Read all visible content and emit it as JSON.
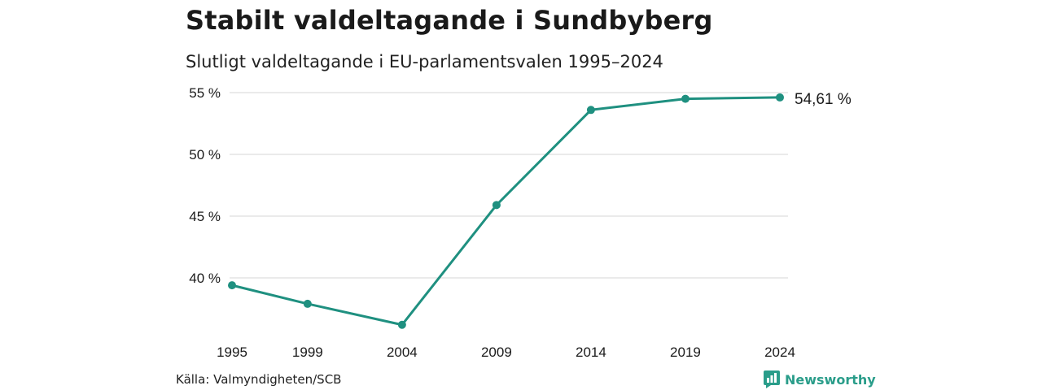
{
  "title": "Stabilt valdeltagande i Sundbyberg",
  "subtitle": "Slutligt valdeltagande i EU-parlamentsvalen 1995–2024",
  "source": "Källa: Valmyndigheten/SCB",
  "logo_text": "Newsworthy",
  "colors": {
    "line": "#1f9080",
    "grid": "#dddddd",
    "logo": "#2a9d8a"
  },
  "chart_data": {
    "type": "line",
    "title": "Stabilt valdeltagande i Sundbyberg",
    "subtitle": "Slutligt valdeltagande i EU-parlamentsvalen 1995–2024",
    "xlabel": "",
    "ylabel": "",
    "x": [
      1995,
      1999,
      2004,
      2009,
      2014,
      2019,
      2024
    ],
    "series": [
      {
        "values": [
          39.4,
          37.9,
          36.2,
          45.9,
          53.6,
          54.5,
          54.61
        ]
      }
    ],
    "y_ticks": [
      40,
      45,
      50,
      55
    ],
    "y_tick_labels": [
      "40 %",
      "45 %",
      "50 %",
      "55 %"
    ],
    "x_tick_labels": [
      "1995",
      "1999",
      "2004",
      "2009",
      "2014",
      "2019",
      "2024"
    ],
    "ylim": [
      35,
      55
    ],
    "grid": true,
    "end_label": "54,61 %",
    "legend": "none"
  }
}
